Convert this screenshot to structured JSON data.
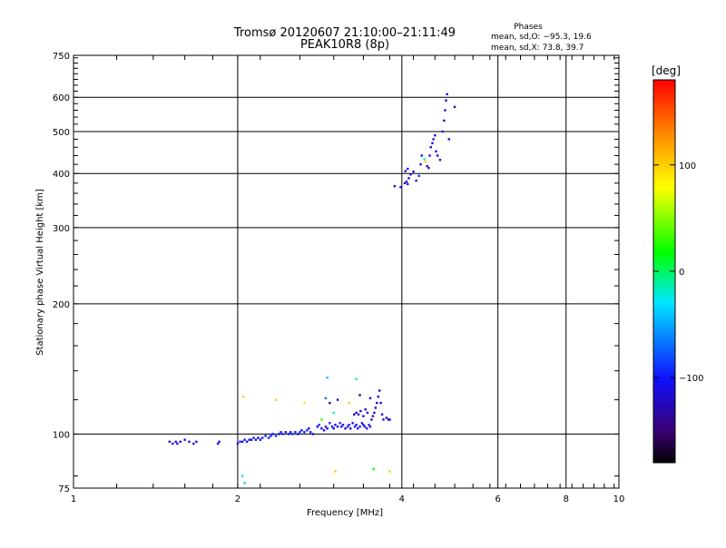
{
  "chart_data": {
    "type": "scatter",
    "title": "Tromsø 20120607 21:10:00–21:11:49",
    "subtitle": "PEAK10R8 (8p)",
    "xlabel": "Frequency [MHz]",
    "ylabel": "Stationary phase Virtual Height [km]",
    "x_scale": "log",
    "y_scale": "log",
    "xlim": [
      1,
      10
    ],
    "ylim": [
      75,
      750
    ],
    "x_ticks": [
      1,
      2,
      4,
      6,
      8,
      10
    ],
    "x_tick_labels": [
      "1",
      "2",
      "4",
      "6",
      "8",
      "10"
    ],
    "y_ticks": [
      75,
      100,
      200,
      300,
      400,
      500,
      600,
      750
    ],
    "y_tick_labels": [
      "75",
      "100",
      "200",
      "300",
      "400",
      "500",
      "600",
      "750"
    ],
    "grid": true,
    "stats": {
      "heading": "Phases",
      "line_o": "mean, sd,O: −95.3, 19.6",
      "line_x": "mean, sd,X:  73.8, 39.7"
    },
    "colorbar": {
      "title": "[deg]",
      "range": [
        -180,
        180
      ],
      "tick_values": [
        100,
        0,
        -100
      ],
      "tick_labels": [
        "100",
        "0",
        "−100"
      ]
    },
    "points": [
      {
        "x": 1.5,
        "y": 96,
        "c": -110
      },
      {
        "x": 1.52,
        "y": 95,
        "c": -110
      },
      {
        "x": 1.54,
        "y": 96,
        "c": -105
      },
      {
        "x": 1.55,
        "y": 95,
        "c": -112
      },
      {
        "x": 1.57,
        "y": 96,
        "c": -108
      },
      {
        "x": 1.6,
        "y": 97,
        "c": -100
      },
      {
        "x": 1.63,
        "y": 96,
        "c": -110
      },
      {
        "x": 1.66,
        "y": 95,
        "c": -105
      },
      {
        "x": 1.68,
        "y": 96,
        "c": -108
      },
      {
        "x": 1.84,
        "y": 95,
        "c": -100
      },
      {
        "x": 1.85,
        "y": 96,
        "c": -105
      },
      {
        "x": 2.0,
        "y": 95,
        "c": -110
      },
      {
        "x": 2.02,
        "y": 96,
        "c": -95
      },
      {
        "x": 2.04,
        "y": 96,
        "c": -100
      },
      {
        "x": 2.06,
        "y": 97,
        "c": -110
      },
      {
        "x": 2.08,
        "y": 96,
        "c": -105
      },
      {
        "x": 2.1,
        "y": 97,
        "c": -100
      },
      {
        "x": 2.12,
        "y": 97,
        "c": -108
      },
      {
        "x": 2.14,
        "y": 98,
        "c": -95
      },
      {
        "x": 2.16,
        "y": 97,
        "c": -100
      },
      {
        "x": 2.18,
        "y": 98,
        "c": -102
      },
      {
        "x": 2.2,
        "y": 97,
        "c": -98
      },
      {
        "x": 2.22,
        "y": 98,
        "c": -110
      },
      {
        "x": 2.25,
        "y": 99,
        "c": -100
      },
      {
        "x": 2.28,
        "y": 98,
        "c": -95
      },
      {
        "x": 2.3,
        "y": 99,
        "c": -105
      },
      {
        "x": 2.32,
        "y": 100,
        "c": -100
      },
      {
        "x": 2.35,
        "y": 99,
        "c": -90
      },
      {
        "x": 2.38,
        "y": 100,
        "c": -108
      },
      {
        "x": 2.4,
        "y": 101,
        "c": -100
      },
      {
        "x": 2.42,
        "y": 100,
        "c": -95
      },
      {
        "x": 2.45,
        "y": 101,
        "c": -110
      },
      {
        "x": 2.48,
        "y": 100,
        "c": -100
      },
      {
        "x": 2.5,
        "y": 101,
        "c": -105
      },
      {
        "x": 2.52,
        "y": 100,
        "c": -95
      },
      {
        "x": 2.55,
        "y": 101,
        "c": -100
      },
      {
        "x": 2.58,
        "y": 100,
        "c": -110
      },
      {
        "x": 2.6,
        "y": 101,
        "c": -90
      },
      {
        "x": 2.62,
        "y": 102,
        "c": -100
      },
      {
        "x": 2.65,
        "y": 101,
        "c": -105
      },
      {
        "x": 2.68,
        "y": 102,
        "c": -95
      },
      {
        "x": 2.7,
        "y": 103,
        "c": -110
      },
      {
        "x": 2.72,
        "y": 101,
        "c": -100
      },
      {
        "x": 2.75,
        "y": 100,
        "c": -108
      },
      {
        "x": 2.8,
        "y": 104,
        "c": -100
      },
      {
        "x": 2.82,
        "y": 105,
        "c": -95
      },
      {
        "x": 2.85,
        "y": 103,
        "c": -110
      },
      {
        "x": 2.88,
        "y": 102,
        "c": -105
      },
      {
        "x": 2.9,
        "y": 104,
        "c": -120
      },
      {
        "x": 2.92,
        "y": 103,
        "c": -100
      },
      {
        "x": 2.95,
        "y": 106,
        "c": -95
      },
      {
        "x": 2.98,
        "y": 104,
        "c": -110
      },
      {
        "x": 3.0,
        "y": 103,
        "c": -105
      },
      {
        "x": 3.02,
        "y": 105,
        "c": -120
      },
      {
        "x": 3.05,
        "y": 104,
        "c": -100
      },
      {
        "x": 3.08,
        "y": 106,
        "c": -95
      },
      {
        "x": 3.1,
        "y": 104,
        "c": -110
      },
      {
        "x": 3.12,
        "y": 105,
        "c": -100
      },
      {
        "x": 3.15,
        "y": 103,
        "c": -108
      },
      {
        "x": 3.18,
        "y": 104,
        "c": -95
      },
      {
        "x": 3.2,
        "y": 105,
        "c": -110
      },
      {
        "x": 3.22,
        "y": 103,
        "c": -100
      },
      {
        "x": 3.25,
        "y": 106,
        "c": -120
      },
      {
        "x": 3.28,
        "y": 104,
        "c": -100
      },
      {
        "x": 3.3,
        "y": 105,
        "c": -110
      },
      {
        "x": 3.32,
        "y": 103,
        "c": -95
      },
      {
        "x": 3.35,
        "y": 104,
        "c": -105
      },
      {
        "x": 3.38,
        "y": 106,
        "c": -100
      },
      {
        "x": 3.4,
        "y": 105,
        "c": -120
      },
      {
        "x": 3.42,
        "y": 104,
        "c": -110
      },
      {
        "x": 3.45,
        "y": 103,
        "c": -100
      },
      {
        "x": 3.48,
        "y": 105,
        "c": -95
      },
      {
        "x": 3.5,
        "y": 104,
        "c": -108
      },
      {
        "x": 3.27,
        "y": 111,
        "c": -120
      },
      {
        "x": 3.3,
        "y": 112,
        "c": -115
      },
      {
        "x": 3.33,
        "y": 111,
        "c": -120
      },
      {
        "x": 3.36,
        "y": 113,
        "c": -118
      },
      {
        "x": 3.4,
        "y": 110,
        "c": -120
      },
      {
        "x": 3.43,
        "y": 114,
        "c": -115
      },
      {
        "x": 3.46,
        "y": 112,
        "c": -120
      },
      {
        "x": 3.52,
        "y": 108,
        "c": -118
      },
      {
        "x": 3.54,
        "y": 110,
        "c": -120
      },
      {
        "x": 3.56,
        "y": 112,
        "c": -115
      },
      {
        "x": 3.58,
        "y": 115,
        "c": -120
      },
      {
        "x": 3.6,
        "y": 118,
        "c": -118
      },
      {
        "x": 3.62,
        "y": 122,
        "c": -120
      },
      {
        "x": 3.64,
        "y": 126,
        "c": -115
      },
      {
        "x": 3.66,
        "y": 118,
        "c": -120
      },
      {
        "x": 3.68,
        "y": 111,
        "c": -118
      },
      {
        "x": 3.7,
        "y": 108,
        "c": -120
      },
      {
        "x": 3.75,
        "y": 109,
        "c": -115
      },
      {
        "x": 3.78,
        "y": 108,
        "c": -120
      },
      {
        "x": 3.8,
        "y": 108,
        "c": -118
      },
      {
        "x": 2.05,
        "y": 122,
        "c": 100
      },
      {
        "x": 2.04,
        "y": 80,
        "c": -30
      },
      {
        "x": 2.06,
        "y": 77,
        "c": -40
      },
      {
        "x": 2.35,
        "y": 120,
        "c": 100
      },
      {
        "x": 2.65,
        "y": 118,
        "c": 90
      },
      {
        "x": 2.92,
        "y": 135,
        "c": -40
      },
      {
        "x": 2.9,
        "y": 121,
        "c": -70
      },
      {
        "x": 2.95,
        "y": 118,
        "c": -130
      },
      {
        "x": 3.0,
        "y": 112,
        "c": -30
      },
      {
        "x": 2.85,
        "y": 108,
        "c": 30
      },
      {
        "x": 3.02,
        "y": 82,
        "c": 100
      },
      {
        "x": 3.05,
        "y": 120,
        "c": -120
      },
      {
        "x": 3.2,
        "y": 118,
        "c": 100
      },
      {
        "x": 3.3,
        "y": 134,
        "c": -20
      },
      {
        "x": 3.35,
        "y": 123,
        "c": -150
      },
      {
        "x": 3.5,
        "y": 121,
        "c": -110
      },
      {
        "x": 3.55,
        "y": 83,
        "c": 20
      },
      {
        "x": 3.8,
        "y": 82,
        "c": 100
      },
      {
        "x": 3.88,
        "y": 374,
        "c": -120
      },
      {
        "x": 3.98,
        "y": 372,
        "c": -110
      },
      {
        "x": 4.05,
        "y": 380,
        "c": -130
      },
      {
        "x": 4.08,
        "y": 383,
        "c": -120
      },
      {
        "x": 4.1,
        "y": 378,
        "c": -110
      },
      {
        "x": 4.12,
        "y": 390,
        "c": -115
      },
      {
        "x": 4.15,
        "y": 398,
        "c": -120
      },
      {
        "x": 4.2,
        "y": 404,
        "c": -110
      },
      {
        "x": 4.06,
        "y": 405,
        "c": -130
      },
      {
        "x": 4.1,
        "y": 410,
        "c": -100
      },
      {
        "x": 4.25,
        "y": 385,
        "c": -120
      },
      {
        "x": 4.3,
        "y": 395,
        "c": -90
      },
      {
        "x": 4.33,
        "y": 420,
        "c": -110
      },
      {
        "x": 4.35,
        "y": 440,
        "c": -100
      },
      {
        "x": 4.4,
        "y": 432,
        "c": -20
      },
      {
        "x": 4.42,
        "y": 426,
        "c": 100
      },
      {
        "x": 4.45,
        "y": 416,
        "c": -110
      },
      {
        "x": 4.48,
        "y": 412,
        "c": -120
      },
      {
        "x": 4.5,
        "y": 440,
        "c": -110
      },
      {
        "x": 4.52,
        "y": 460,
        "c": -120
      },
      {
        "x": 4.55,
        "y": 470,
        "c": -110
      },
      {
        "x": 4.57,
        "y": 480,
        "c": -120
      },
      {
        "x": 4.6,
        "y": 490,
        "c": -110
      },
      {
        "x": 4.62,
        "y": 450,
        "c": -100
      },
      {
        "x": 4.65,
        "y": 440,
        "c": -110
      },
      {
        "x": 4.7,
        "y": 430,
        "c": -120
      },
      {
        "x": 4.75,
        "y": 500,
        "c": -110
      },
      {
        "x": 4.78,
        "y": 530,
        "c": -120
      },
      {
        "x": 4.8,
        "y": 560,
        "c": -110
      },
      {
        "x": 4.82,
        "y": 590,
        "c": -120
      },
      {
        "x": 4.84,
        "y": 610,
        "c": -110
      },
      {
        "x": 4.88,
        "y": 480,
        "c": -115
      },
      {
        "x": 5.0,
        "y": 570,
        "c": -120
      }
    ]
  }
}
